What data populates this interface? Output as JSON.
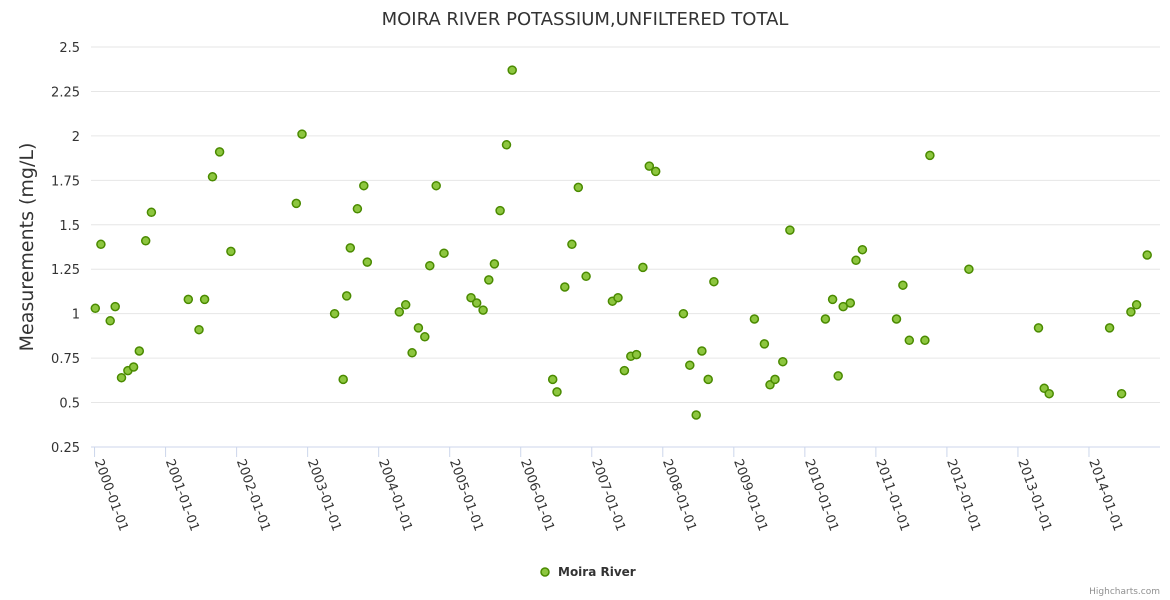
{
  "colors": {
    "marker_fill": "#8DC63F",
    "marker_stroke": "#4A8A00",
    "grid": "#e6e6e6",
    "axis": "#ccd6eb"
  },
  "credits": "Highcharts.com",
  "chart_data": {
    "type": "scatter",
    "title": "MOIRA RIVER POTASSIUM,UNFILTERED TOTAL",
    "xlabel": "",
    "ylabel": "Measurements (mg/L)",
    "ylim": [
      0.25,
      2.5
    ],
    "yticks": [
      "0.25",
      "0.5",
      "0.75",
      "1",
      "1.25",
      "1.5",
      "1.75",
      "2",
      "2.25",
      "2.5"
    ],
    "xlim": [
      1999.95,
      2015.0
    ],
    "xticks": [
      {
        "label": "2000-01-01",
        "value": 2000
      },
      {
        "label": "2001-01-01",
        "value": 2001
      },
      {
        "label": "2002-01-01",
        "value": 2002
      },
      {
        "label": "2003-01-01",
        "value": 2003
      },
      {
        "label": "2004-01-01",
        "value": 2004
      },
      {
        "label": "2005-01-01",
        "value": 2005
      },
      {
        "label": "2006-01-01",
        "value": 2006
      },
      {
        "label": "2007-01-01",
        "value": 2007
      },
      {
        "label": "2008-01-01",
        "value": 2008
      },
      {
        "label": "2009-01-01",
        "value": 2009
      },
      {
        "label": "2010-01-01",
        "value": 2010
      },
      {
        "label": "2011-01-01",
        "value": 2011
      },
      {
        "label": "2012-01-01",
        "value": 2012
      },
      {
        "label": "2013-01-01",
        "value": 2013
      },
      {
        "label": "2014-01-01",
        "value": 2014
      }
    ],
    "legend_position": "bottom-center",
    "series": [
      {
        "name": "Moira River",
        "points": [
          [
            2000.01,
            1.03
          ],
          [
            2000.09,
            1.39
          ],
          [
            2000.22,
            0.96
          ],
          [
            2000.29,
            1.04
          ],
          [
            2000.38,
            0.64
          ],
          [
            2000.47,
            0.68
          ],
          [
            2000.55,
            0.7
          ],
          [
            2000.63,
            0.79
          ],
          [
            2000.72,
            1.41
          ],
          [
            2000.8,
            1.57
          ],
          [
            2001.32,
            1.08
          ],
          [
            2001.47,
            0.91
          ],
          [
            2001.55,
            1.08
          ],
          [
            2001.66,
            1.77
          ],
          [
            2001.76,
            1.91
          ],
          [
            2001.92,
            1.35
          ],
          [
            2002.84,
            1.62
          ],
          [
            2002.92,
            2.01
          ],
          [
            2003.38,
            1.0
          ],
          [
            2003.5,
            0.63
          ],
          [
            2003.55,
            1.1
          ],
          [
            2003.6,
            1.37
          ],
          [
            2003.7,
            1.59
          ],
          [
            2003.79,
            1.72
          ],
          [
            2003.84,
            1.29
          ],
          [
            2004.29,
            1.01
          ],
          [
            2004.38,
            1.05
          ],
          [
            2004.47,
            0.78
          ],
          [
            2004.56,
            0.92
          ],
          [
            2004.65,
            0.87
          ],
          [
            2004.72,
            1.27
          ],
          [
            2004.81,
            1.72
          ],
          [
            2004.92,
            1.34
          ],
          [
            2005.3,
            1.09
          ],
          [
            2005.38,
            1.06
          ],
          [
            2005.47,
            1.02
          ],
          [
            2005.55,
            1.19
          ],
          [
            2005.63,
            1.28
          ],
          [
            2005.71,
            1.58
          ],
          [
            2005.8,
            1.95
          ],
          [
            2005.88,
            2.37
          ],
          [
            2006.45,
            0.63
          ],
          [
            2006.51,
            0.56
          ],
          [
            2006.62,
            1.15
          ],
          [
            2006.72,
            1.39
          ],
          [
            2006.81,
            1.71
          ],
          [
            2006.92,
            1.21
          ],
          [
            2007.29,
            1.07
          ],
          [
            2007.37,
            1.09
          ],
          [
            2007.46,
            0.68
          ],
          [
            2007.55,
            0.76
          ],
          [
            2007.63,
            0.77
          ],
          [
            2007.72,
            1.26
          ],
          [
            2007.81,
            1.83
          ],
          [
            2007.9,
            1.8
          ],
          [
            2008.29,
            1.0
          ],
          [
            2008.38,
            0.71
          ],
          [
            2008.47,
            0.43
          ],
          [
            2008.55,
            0.79
          ],
          [
            2008.64,
            0.63
          ],
          [
            2008.72,
            1.18
          ],
          [
            2009.29,
            0.97
          ],
          [
            2009.43,
            0.83
          ],
          [
            2009.51,
            0.6
          ],
          [
            2009.58,
            0.63
          ],
          [
            2009.69,
            0.73
          ],
          [
            2009.79,
            1.47
          ],
          [
            2010.29,
            0.97
          ],
          [
            2010.39,
            1.08
          ],
          [
            2010.47,
            0.65
          ],
          [
            2010.54,
            1.04
          ],
          [
            2010.64,
            1.06
          ],
          [
            2010.72,
            1.3
          ],
          [
            2010.81,
            1.36
          ],
          [
            2011.29,
            0.97
          ],
          [
            2011.38,
            1.16
          ],
          [
            2011.47,
            0.85
          ],
          [
            2011.69,
            0.85
          ],
          [
            2011.76,
            1.89
          ],
          [
            2012.31,
            1.25
          ],
          [
            2013.29,
            0.92
          ],
          [
            2013.37,
            0.58
          ],
          [
            2013.44,
            0.55
          ],
          [
            2014.29,
            0.92
          ],
          [
            2014.46,
            0.55
          ],
          [
            2014.59,
            1.01
          ],
          [
            2014.67,
            1.05
          ],
          [
            2014.82,
            1.33
          ]
        ]
      }
    ]
  }
}
